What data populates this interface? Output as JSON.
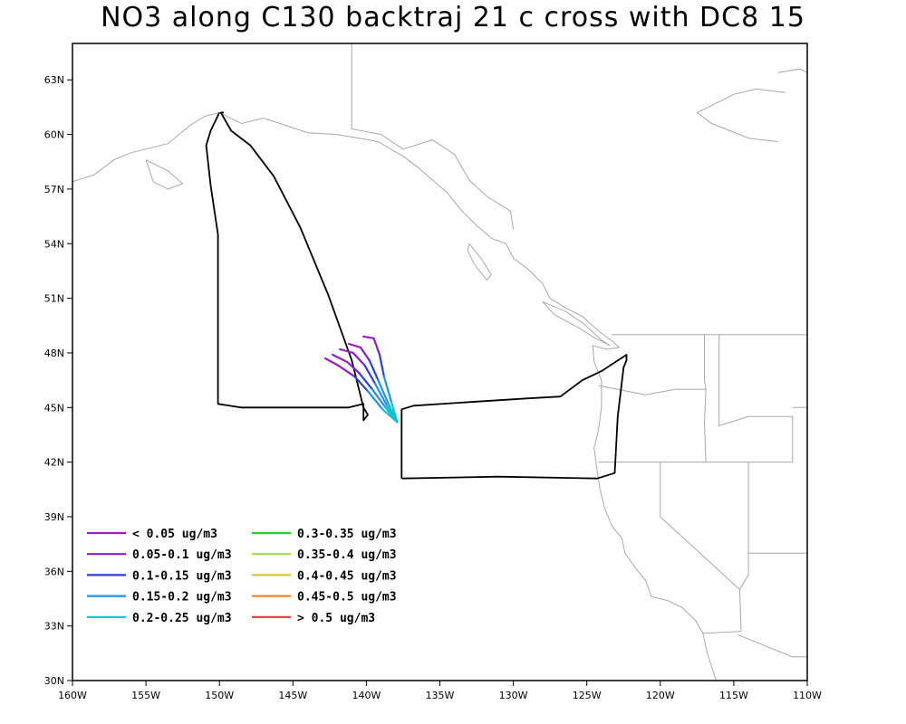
{
  "title": "NO3 along C130 backtraj 21 c cross with DC8 15",
  "axes": {
    "x_ticks": [
      "160W",
      "155W",
      "150W",
      "145W",
      "140W",
      "135W",
      "130W",
      "125W",
      "120W",
      "115W",
      "110W"
    ],
    "y_ticks": [
      "30N",
      "33N",
      "36N",
      "39N",
      "42N",
      "45N",
      "48N",
      "51N",
      "54N",
      "57N",
      "60N",
      "63N"
    ],
    "lon_range": [
      -160,
      -110
    ],
    "lat_range": [
      30,
      65
    ]
  },
  "legend": [
    {
      "label": "< 0.05 ug/m3",
      "color": "#9b1fc4"
    },
    {
      "label": "0.05-0.1 ug/m3",
      "color": "#8a1dd0"
    },
    {
      "label": "0.1-0.15 ug/m3",
      "color": "#2244d8"
    },
    {
      "label": "0.15-0.2 ug/m3",
      "color": "#1e90f0"
    },
    {
      "label": "0.2-0.25 ug/m3",
      "color": "#12c0d0"
    },
    {
      "label": "0.3-0.35 ug/m3",
      "color": "#22cc22"
    },
    {
      "label": "0.35-0.4 ug/m3",
      "color": "#a8d848"
    },
    {
      "label": "0.4-0.45 ug/m3",
      "color": "#d8c830"
    },
    {
      "label": "0.45-0.5 ug/m3",
      "color": "#f08a28"
    },
    {
      "label": "> 0.5 ug/m3",
      "color": "#e83838"
    }
  ],
  "flight_track": [
    [
      -150.0,
      61.2
    ],
    [
      -150.6,
      60.2
    ],
    [
      -150.9,
      59.4
    ],
    [
      -150.6,
      57.2
    ],
    [
      -150.1,
      54.5
    ],
    [
      -150.1,
      45.2
    ],
    [
      -148.5,
      45.0
    ],
    [
      -145.0,
      45.0
    ],
    [
      -141.2,
      45.0
    ],
    [
      -140.2,
      45.2
    ],
    [
      -140.2,
      44.3
    ],
    [
      -139.9,
      44.6
    ],
    [
      -140.2,
      45.0
    ],
    [
      -141.0,
      47.6
    ],
    [
      -142.6,
      51.2
    ],
    [
      -144.5,
      54.9
    ],
    [
      -146.3,
      57.7
    ],
    [
      -147.9,
      59.4
    ],
    [
      -149.2,
      60.2
    ],
    [
      -149.9,
      61.2
    ],
    [
      -149.7,
      61.2
    ]
  ],
  "flight_track_2": [
    [
      -137.6,
      41.1
    ],
    [
      -137.6,
      44.9
    ],
    [
      -136.8,
      45.1
    ],
    [
      -133.0,
      45.3
    ],
    [
      -129.0,
      45.5
    ],
    [
      -126.8,
      45.6
    ],
    [
      -125.3,
      46.5
    ],
    [
      -124.0,
      47.0
    ],
    [
      -122.3,
      47.9
    ],
    [
      -122.3,
      47.6
    ],
    [
      -122.5,
      47.2
    ],
    [
      -122.9,
      44.5
    ],
    [
      -123.1,
      41.4
    ],
    [
      -124.3,
      41.1
    ],
    [
      -131.0,
      41.2
    ],
    [
      -137.6,
      41.1
    ]
  ],
  "trajectories": [
    {
      "points": [
        [
          -142.8,
          47.7
        ],
        [
          -141.9,
          47.3
        ],
        [
          -140.8,
          46.7
        ],
        [
          -139.9,
          45.9
        ],
        [
          -138.9,
          44.9
        ],
        [
          -137.9,
          44.2
        ]
      ],
      "colors": [
        "#9b1fc4",
        "#8a1dd0",
        "#2244d8",
        "#1e90f0",
        "#12c0d0"
      ]
    },
    {
      "points": [
        [
          -142.3,
          47.9
        ],
        [
          -141.3,
          47.5
        ],
        [
          -140.5,
          46.9
        ],
        [
          -139.6,
          46.0
        ],
        [
          -138.7,
          45.0
        ],
        [
          -137.9,
          44.2
        ]
      ],
      "colors": [
        "#9b1fc4",
        "#8a1dd0",
        "#2244d8",
        "#1e90f0",
        "#12c0d0"
      ]
    },
    {
      "points": [
        [
          -141.8,
          48.2
        ],
        [
          -140.9,
          48.0
        ],
        [
          -140.1,
          47.3
        ],
        [
          -139.4,
          46.3
        ],
        [
          -138.6,
          45.1
        ],
        [
          -137.9,
          44.2
        ]
      ],
      "colors": [
        "#9b1fc4",
        "#8a1dd0",
        "#2244d8",
        "#1e90f0",
        "#12c0d0"
      ]
    },
    {
      "points": [
        [
          -141.2,
          48.5
        ],
        [
          -140.4,
          48.3
        ],
        [
          -139.8,
          47.6
        ],
        [
          -139.2,
          46.5
        ],
        [
          -138.5,
          45.2
        ],
        [
          -137.9,
          44.2
        ]
      ],
      "colors": [
        "#9b1fc4",
        "#8a1dd0",
        "#2244d8",
        "#1e90f0",
        "#12c0d0"
      ]
    },
    {
      "points": [
        [
          -140.2,
          48.9
        ],
        [
          -139.5,
          48.8
        ],
        [
          -139.1,
          47.9
        ],
        [
          -138.8,
          46.7
        ],
        [
          -138.3,
          45.3
        ],
        [
          -137.9,
          44.2
        ]
      ],
      "colors": [
        "#9b1fc4",
        "#8a1dd0",
        "#2244d8",
        "#1e90f0",
        "#12c0d0"
      ]
    }
  ],
  "coastlines": [
    [
      [
        -160,
        57.4
      ],
      [
        -158.5,
        57.8
      ],
      [
        -157.2,
        58.6
      ],
      [
        -156.0,
        59.0
      ],
      [
        -154.5,
        59.3
      ],
      [
        -153.5,
        59.5
      ],
      [
        -152.0,
        60.5
      ],
      [
        -151.0,
        61.0
      ],
      [
        -150.0,
        61.2
      ],
      [
        -148.5,
        60.6
      ],
      [
        -147.0,
        60.9
      ],
      [
        -145.5,
        60.5
      ],
      [
        -144.0,
        60.1
      ],
      [
        -142.0,
        60.0
      ],
      [
        -140.5,
        59.8
      ],
      [
        -139.2,
        59.6
      ],
      [
        -137.5,
        58.8
      ],
      [
        -136.5,
        58.2
      ],
      [
        -135.5,
        57.5
      ],
      [
        -134.5,
        56.8
      ],
      [
        -133.5,
        55.8
      ],
      [
        -132.5,
        55.0
      ],
      [
        -131.5,
        54.3
      ],
      [
        -130.5,
        54.0
      ],
      [
        -130.0,
        53.2
      ],
      [
        -129.0,
        52.6
      ],
      [
        -128.0,
        51.8
      ],
      [
        -127.5,
        51.0
      ],
      [
        -126.5,
        50.5
      ],
      [
        -125.3,
        50.0
      ],
      [
        -124.2,
        49.2
      ],
      [
        -123.2,
        48.6
      ],
      [
        -122.8,
        48.3
      ],
      [
        -123.6,
        48.2
      ],
      [
        -124.6,
        48.4
      ],
      [
        -124.5,
        47.5
      ],
      [
        -124.0,
        46.5
      ],
      [
        -124.0,
        45.0
      ],
      [
        -124.2,
        43.8
      ],
      [
        -124.5,
        42.8
      ],
      [
        -124.3,
        41.5
      ],
      [
        -124.1,
        40.5
      ],
      [
        -123.8,
        39.5
      ],
      [
        -123.3,
        38.5
      ],
      [
        -122.6,
        37.8
      ],
      [
        -122.4,
        37.0
      ],
      [
        -121.8,
        36.3
      ],
      [
        -121.0,
        35.5
      ],
      [
        -120.6,
        34.6
      ],
      [
        -119.5,
        34.4
      ],
      [
        -118.5,
        34.0
      ],
      [
        -117.6,
        33.3
      ],
      [
        -117.1,
        32.6
      ],
      [
        -116.8,
        31.5
      ],
      [
        -116.2,
        30.0
      ]
    ],
    [
      [
        -155.0,
        58.6
      ],
      [
        -153.5,
        58.0
      ],
      [
        -152.5,
        57.3
      ],
      [
        -153.5,
        57.0
      ],
      [
        -154.5,
        57.4
      ],
      [
        -155.0,
        58.6
      ]
    ],
    [
      [
        -133.0,
        54.0
      ],
      [
        -132.2,
        53.2
      ],
      [
        -131.5,
        52.3
      ],
      [
        -131.8,
        52.0
      ],
      [
        -132.6,
        52.8
      ],
      [
        -133.1,
        53.6
      ],
      [
        -133.0,
        54.0
      ]
    ],
    [
      [
        -128.0,
        50.8
      ],
      [
        -126.5,
        50.3
      ],
      [
        -125.2,
        49.6
      ],
      [
        -124.0,
        48.7
      ],
      [
        -123.4,
        48.4
      ],
      [
        -124.4,
        48.8
      ],
      [
        -125.6,
        49.4
      ],
      [
        -127.2,
        50.1
      ],
      [
        -128.0,
        50.8
      ]
    ],
    [
      [
        -112.0,
        59.6
      ],
      [
        -114.0,
        59.8
      ],
      [
        -116.5,
        60.6
      ],
      [
        -117.5,
        61.2
      ],
      [
        -115.0,
        62.2
      ],
      [
        -113.5,
        62.5
      ],
      [
        -111.5,
        62.3
      ]
    ],
    [
      [
        -112.0,
        63.4
      ],
      [
        -110.5,
        63.6
      ],
      [
        -110.0,
        63.4
      ]
    ]
  ],
  "borders": [
    [
      [
        -141.0,
        65
      ],
      [
        -141.0,
        60.3
      ],
      [
        -139.0,
        60.0
      ],
      [
        -137.5,
        59.2
      ],
      [
        -135.5,
        59.7
      ],
      [
        -134.0,
        58.9
      ],
      [
        -133.0,
        57.5
      ],
      [
        -131.8,
        56.6
      ],
      [
        -130.2,
        55.8
      ],
      [
        -130.0,
        54.8
      ]
    ],
    [
      [
        -123.3,
        49.0
      ],
      [
        -110,
        49.0
      ]
    ],
    [
      [
        -124.2,
        46.2
      ],
      [
        -121.0,
        45.7
      ],
      [
        -119.0,
        46.0
      ],
      [
        -116.9,
        46.0
      ],
      [
        -117.0,
        44.2
      ],
      [
        -116.9,
        42.0
      ],
      [
        -124.2,
        42.0
      ]
    ],
    [
      [
        -117.0,
        49.0
      ],
      [
        -117.0,
        46.5
      ],
      [
        -116.9,
        46.0
      ]
    ],
    [
      [
        -116.0,
        49.0
      ],
      [
        -116.0,
        44.0
      ],
      [
        -114.0,
        44.5
      ],
      [
        -111.0,
        44.5
      ],
      [
        -111.0,
        42.0
      ],
      [
        -116.9,
        42.0
      ]
    ],
    [
      [
        -120.0,
        42.0
      ],
      [
        -120.0,
        39.0
      ],
      [
        -114.6,
        35.0
      ],
      [
        -114.5,
        32.7
      ],
      [
        -117.1,
        32.6
      ]
    ],
    [
      [
        -114.0,
        42.0
      ],
      [
        -114.0,
        35.8
      ],
      [
        -114.6,
        35.0
      ]
    ],
    [
      [
        -111.0,
        45.0
      ],
      [
        -110,
        45.0
      ]
    ],
    [
      [
        -114.0,
        37.0
      ],
      [
        -110,
        37.0
      ]
    ],
    [
      [
        -114.7,
        32.5
      ],
      [
        -111.0,
        31.3
      ],
      [
        -110,
        31.3
      ]
    ]
  ]
}
